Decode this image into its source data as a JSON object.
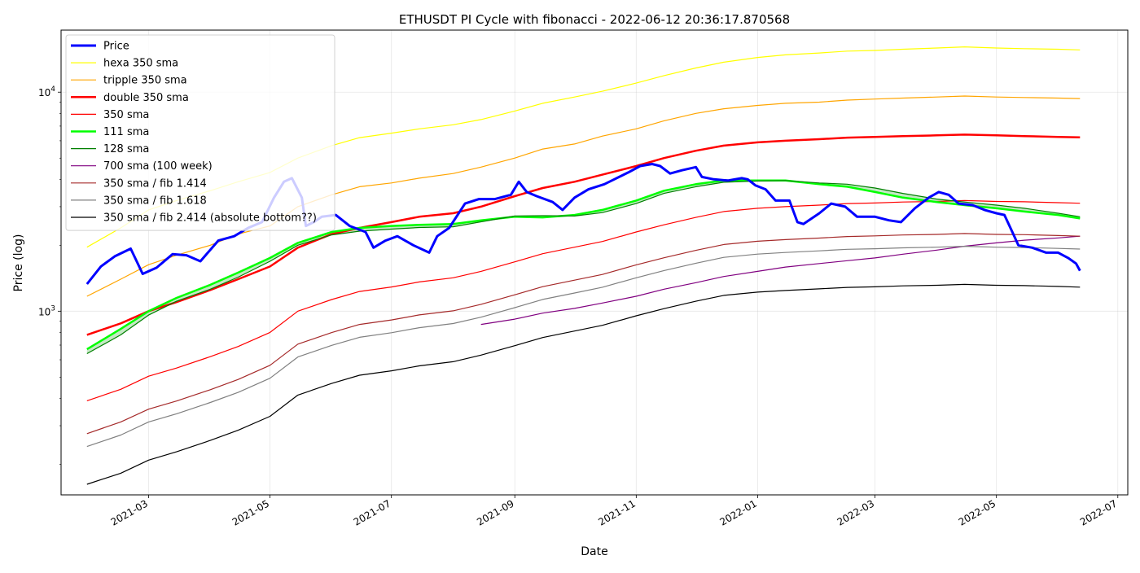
{
  "chart_data": {
    "type": "line",
    "title": "ETHUSDT PI Cycle with fibonacci - 2022-06-12 20:36:17.870568",
    "xlabel": "Date",
    "ylabel": "Price (log)",
    "yscale": "log",
    "xlim": [
      "2021-01-16",
      "2022-07-06"
    ],
    "ylim": [
      145,
      19200
    ],
    "grid": true,
    "legend_position": "top-left",
    "x_ticks": [
      "2021-03",
      "2021-05",
      "2021-07",
      "2021-09",
      "2021-11",
      "2022-01",
      "2022-03",
      "2022-05",
      "2022-07"
    ],
    "x_tick_dates": [
      "2021-03-01",
      "2021-05-01",
      "2021-07-01",
      "2021-09-01",
      "2021-11-01",
      "2022-01-01",
      "2022-03-01",
      "2022-05-01",
      "2022-07-01"
    ],
    "y_ticks": [
      {
        "value": 1000,
        "base": "10",
        "exp": "3"
      },
      {
        "value": 10000,
        "base": "10",
        "exp": "4"
      }
    ],
    "x": [
      "2021-01-29",
      "2021-02-15",
      "2021-03-01",
      "2021-03-15",
      "2021-04-01",
      "2021-04-15",
      "2021-05-01",
      "2021-05-15",
      "2021-06-01",
      "2021-06-15",
      "2021-07-01",
      "2021-07-15",
      "2021-08-01",
      "2021-08-15",
      "2021-09-01",
      "2021-09-15",
      "2021-10-01",
      "2021-10-15",
      "2021-11-01",
      "2021-11-15",
      "2021-12-01",
      "2021-12-15",
      "2022-01-01",
      "2022-01-15",
      "2022-02-01",
      "2022-02-15",
      "2022-03-01",
      "2022-03-15",
      "2022-04-01",
      "2022-04-15",
      "2022-05-01",
      "2022-05-15",
      "2022-06-01",
      "2022-06-12"
    ],
    "price": {
      "x": [
        "2021-01-29",
        "2021-02-05",
        "2021-02-12",
        "2021-02-20",
        "2021-02-26",
        "2021-03-05",
        "2021-03-13",
        "2021-03-20",
        "2021-03-27",
        "2021-04-05",
        "2021-04-13",
        "2021-04-20",
        "2021-04-27",
        "2021-05-03",
        "2021-05-08",
        "2021-05-12",
        "2021-05-17",
        "2021-05-19",
        "2021-05-23",
        "2021-05-27",
        "2021-06-03",
        "2021-06-10",
        "2021-06-18",
        "2021-06-22",
        "2021-06-28",
        "2021-07-04",
        "2021-07-12",
        "2021-07-20",
        "2021-07-24",
        "2021-07-30",
        "2021-08-07",
        "2021-08-14",
        "2021-08-22",
        "2021-08-30",
        "2021-09-03",
        "2021-09-07",
        "2021-09-12",
        "2021-09-20",
        "2021-09-25",
        "2021-10-01",
        "2021-10-08",
        "2021-10-16",
        "2021-10-21",
        "2021-10-28",
        "2021-11-03",
        "2021-11-09",
        "2021-11-13",
        "2021-11-18",
        "2021-11-24",
        "2021-12-01",
        "2021-12-04",
        "2021-12-10",
        "2021-12-17",
        "2021-12-24",
        "2021-12-27",
        "2021-12-31",
        "2022-01-05",
        "2022-01-10",
        "2022-01-17",
        "2022-01-21",
        "2022-01-24",
        "2022-02-01",
        "2022-02-07",
        "2022-02-14",
        "2022-02-20",
        "2022-02-24",
        "2022-03-01",
        "2022-03-08",
        "2022-03-14",
        "2022-03-21",
        "2022-03-28",
        "2022-04-02",
        "2022-04-07",
        "2022-04-12",
        "2022-04-19",
        "2022-04-25",
        "2022-05-01",
        "2022-05-05",
        "2022-05-09",
        "2022-05-12",
        "2022-05-19",
        "2022-05-26",
        "2022-06-01",
        "2022-06-06",
        "2022-06-10",
        "2022-06-12"
      ],
      "values": [
        1330,
        1600,
        1780,
        1930,
        1480,
        1580,
        1820,
        1800,
        1690,
        2100,
        2200,
        2400,
        2550,
        3300,
        3900,
        4050,
        3300,
        2450,
        2550,
        2700,
        2750,
        2450,
        2300,
        1950,
        2100,
        2200,
        2000,
        1850,
        2200,
        2400,
        3100,
        3250,
        3250,
        3400,
        3900,
        3500,
        3350,
        3150,
        2900,
        3300,
        3600,
        3800,
        4000,
        4300,
        4600,
        4700,
        4600,
        4250,
        4400,
        4550,
        4100,
        4000,
        3950,
        4050,
        4000,
        3750,
        3600,
        3200,
        3200,
        2550,
        2500,
        2800,
        3100,
        3000,
        2700,
        2700,
        2700,
        2600,
        2550,
        2950,
        3300,
        3500,
        3400,
        3100,
        3050,
        2900,
        2800,
        2750,
        2300,
        2000,
        1950,
        1850,
        1850,
        1750,
        1650,
        1530
      ]
    },
    "series": [
      {
        "name": "Price",
        "color": "#0000ff",
        "ref": "price"
      },
      {
        "name": "hexa 350 sma",
        "color": "#ffff00",
        "values": [
          1960,
          2400,
          2900,
          3200,
          3550,
          3900,
          4300,
          5000,
          5700,
          6200,
          6500,
          6800,
          7100,
          7500,
          8200,
          8900,
          9500,
          10100,
          11000,
          11900,
          12900,
          13700,
          14400,
          14800,
          15100,
          15400,
          15500,
          15700,
          15900,
          16100,
          15900,
          15800,
          15700,
          15600
        ]
      },
      {
        "name": "tripple 350 sma",
        "color": "#ffa500",
        "values": [
          1170,
          1400,
          1630,
          1800,
          2000,
          2250,
          2450,
          3000,
          3400,
          3700,
          3850,
          4050,
          4250,
          4550,
          5000,
          5500,
          5800,
          6300,
          6800,
          7400,
          8000,
          8400,
          8700,
          8900,
          9000,
          9200,
          9300,
          9400,
          9500,
          9600,
          9500,
          9450,
          9400,
          9350
        ]
      },
      {
        "name": "double 350 sma",
        "color": "#ff0000",
        "values": [
          780,
          880,
          1000,
          1100,
          1250,
          1400,
          1600,
          1950,
          2250,
          2400,
          2550,
          2700,
          2800,
          3000,
          3350,
          3650,
          3900,
          4200,
          4600,
          5000,
          5400,
          5700,
          5900,
          6000,
          6100,
          6200,
          6250,
          6300,
          6350,
          6400,
          6350,
          6300,
          6250,
          6220
        ]
      },
      {
        "name": "350 sma",
        "color": "#ff0000",
        "values": [
          390,
          440,
          505,
          550,
          620,
          690,
          800,
          1000,
          1130,
          1230,
          1290,
          1360,
          1420,
          1520,
          1680,
          1830,
          1960,
          2080,
          2300,
          2480,
          2680,
          2850,
          2950,
          3000,
          3050,
          3100,
          3120,
          3150,
          3170,
          3200,
          3170,
          3160,
          3130,
          3110
        ]
      },
      {
        "name": "111 sma",
        "color": "#00ff00",
        "values": [
          670,
          830,
          1000,
          1150,
          1320,
          1500,
          1750,
          2050,
          2300,
          2400,
          2450,
          2480,
          2500,
          2600,
          2700,
          2680,
          2750,
          2900,
          3200,
          3550,
          3800,
          3950,
          3950,
          3950,
          3800,
          3700,
          3500,
          3300,
          3150,
          3050,
          2950,
          2850,
          2750,
          2650
        ]
      },
      {
        "name": "128 sma",
        "color": "#008000",
        "values": [
          640,
          780,
          960,
          1110,
          1260,
          1430,
          1690,
          2000,
          2230,
          2320,
          2370,
          2410,
          2430,
          2560,
          2720,
          2730,
          2720,
          2820,
          3100,
          3450,
          3700,
          3880,
          3930,
          3950,
          3850,
          3800,
          3650,
          3450,
          3250,
          3150,
          3050,
          2950,
          2800,
          2700
        ]
      },
      {
        "name": "700 sma (100 week)",
        "color": "#800080",
        "x": [
          "2021-08-15",
          "2021-09-01",
          "2021-09-15",
          "2021-10-01",
          "2021-10-15",
          "2021-11-01",
          "2021-11-15",
          "2021-12-01",
          "2021-12-15",
          "2022-01-01",
          "2022-01-15",
          "2022-02-01",
          "2022-02-15",
          "2022-03-01",
          "2022-03-15",
          "2022-04-01",
          "2022-04-15",
          "2022-05-01",
          "2022-05-15",
          "2022-06-01",
          "2022-06-12"
        ],
        "values": [
          870,
          920,
          980,
          1030,
          1090,
          1170,
          1260,
          1350,
          1440,
          1520,
          1590,
          1650,
          1700,
          1750,
          1820,
          1900,
          1980,
          2050,
          2110,
          2160,
          2200
        ]
      },
      {
        "name": "350 sma / fib 1.414",
        "color": "#a52a2a",
        "values": [
          276,
          312,
          357,
          389,
          438,
          488,
          566,
          707,
          799,
          870,
          912,
          962,
          1004,
          1075,
          1188,
          1294,
          1386,
          1471,
          1627,
          1754,
          1895,
          2016,
          2086,
          2122,
          2157,
          2192,
          2207,
          2228,
          2242,
          2263,
          2242,
          2235,
          2214,
          2199
        ]
      },
      {
        "name": "350 sma / fib 1.618",
        "color": "#808080",
        "values": [
          241,
          272,
          312,
          340,
          383,
          426,
          494,
          618,
          698,
          760,
          797,
          841,
          878,
          939,
          1038,
          1131,
          1211,
          1286,
          1421,
          1533,
          1656,
          1761,
          1823,
          1854,
          1885,
          1916,
          1928,
          1947,
          1959,
          1978,
          1959,
          1953,
          1934,
          1922
        ]
      },
      {
        "name": "350 sma / fib 2.414 (absolute bottom??)",
        "color": "#000000",
        "values": [
          162,
          182,
          209,
          228,
          257,
          286,
          331,
          414,
          468,
          510,
          534,
          563,
          588,
          630,
          696,
          758,
          812,
          862,
          953,
          1027,
          1110,
          1181,
          1222,
          1243,
          1264,
          1284,
          1292,
          1305,
          1313,
          1326,
          1313,
          1309,
          1297,
          1288
        ]
      }
    ]
  }
}
